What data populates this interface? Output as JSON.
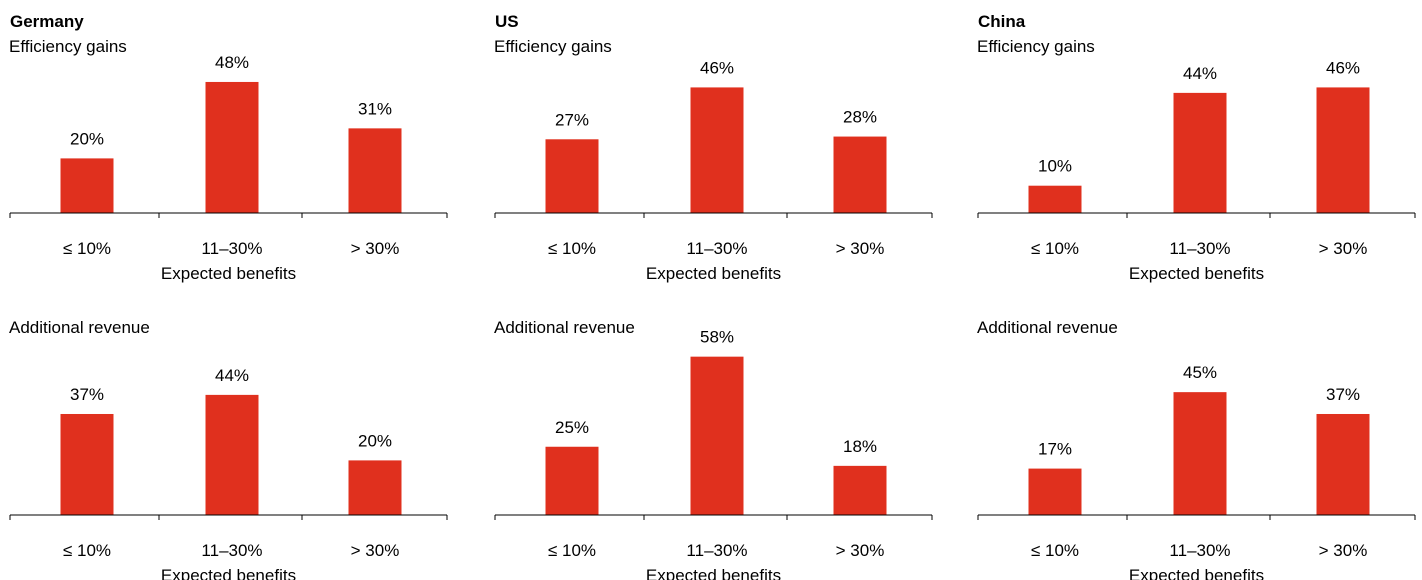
{
  "colors": {
    "bar": "#e0301e",
    "axis": "#000000"
  },
  "chart_data": [
    {
      "type": "bar",
      "country": "Germany",
      "title": "Efficiency gains",
      "xlabel": "Expected benefits",
      "categories": [
        "≤ 10%",
        "11–30%",
        "> 30%"
      ],
      "values": [
        20,
        48,
        31
      ],
      "value_labels": [
        "20%",
        "48%",
        "31%"
      ],
      "ylim": [
        0,
        50
      ]
    },
    {
      "type": "bar",
      "country": "US",
      "title": "Efficiency gains",
      "xlabel": "Expected benefits",
      "categories": [
        "≤ 10%",
        "11–30%",
        "> 30%"
      ],
      "values": [
        27,
        46,
        28
      ],
      "value_labels": [
        "27%",
        "46%",
        "28%"
      ],
      "ylim": [
        0,
        50
      ]
    },
    {
      "type": "bar",
      "country": "China",
      "title": "Efficiency gains",
      "xlabel": "Expected benefits",
      "categories": [
        "≤ 10%",
        "11–30%",
        "> 30%"
      ],
      "values": [
        10,
        44,
        46
      ],
      "value_labels": [
        "10%",
        "44%",
        "46%"
      ],
      "ylim": [
        0,
        50
      ]
    },
    {
      "type": "bar",
      "country": "",
      "title": "Additional revenue",
      "xlabel": "Expected benefits",
      "categories": [
        "≤ 10%",
        "11–30%",
        "> 30%"
      ],
      "values": [
        37,
        44,
        20
      ],
      "value_labels": [
        "37%",
        "44%",
        "20%"
      ],
      "ylim": [
        0,
        60
      ]
    },
    {
      "type": "bar",
      "country": "",
      "title": "Additional revenue",
      "xlabel": "Expected benefits",
      "categories": [
        "≤ 10%",
        "11–30%",
        "> 30%"
      ],
      "values": [
        25,
        58,
        18
      ],
      "value_labels": [
        "25%",
        "58%",
        "18%"
      ],
      "ylim": [
        0,
        60
      ]
    },
    {
      "type": "bar",
      "country": "",
      "title": "Additional revenue",
      "xlabel": "Expected benefits",
      "categories": [
        "≤ 10%",
        "11–30%",
        "> 30%"
      ],
      "values": [
        17,
        45,
        37
      ],
      "value_labels": [
        "17%",
        "45%",
        "37%"
      ],
      "ylim": [
        0,
        60
      ]
    }
  ]
}
